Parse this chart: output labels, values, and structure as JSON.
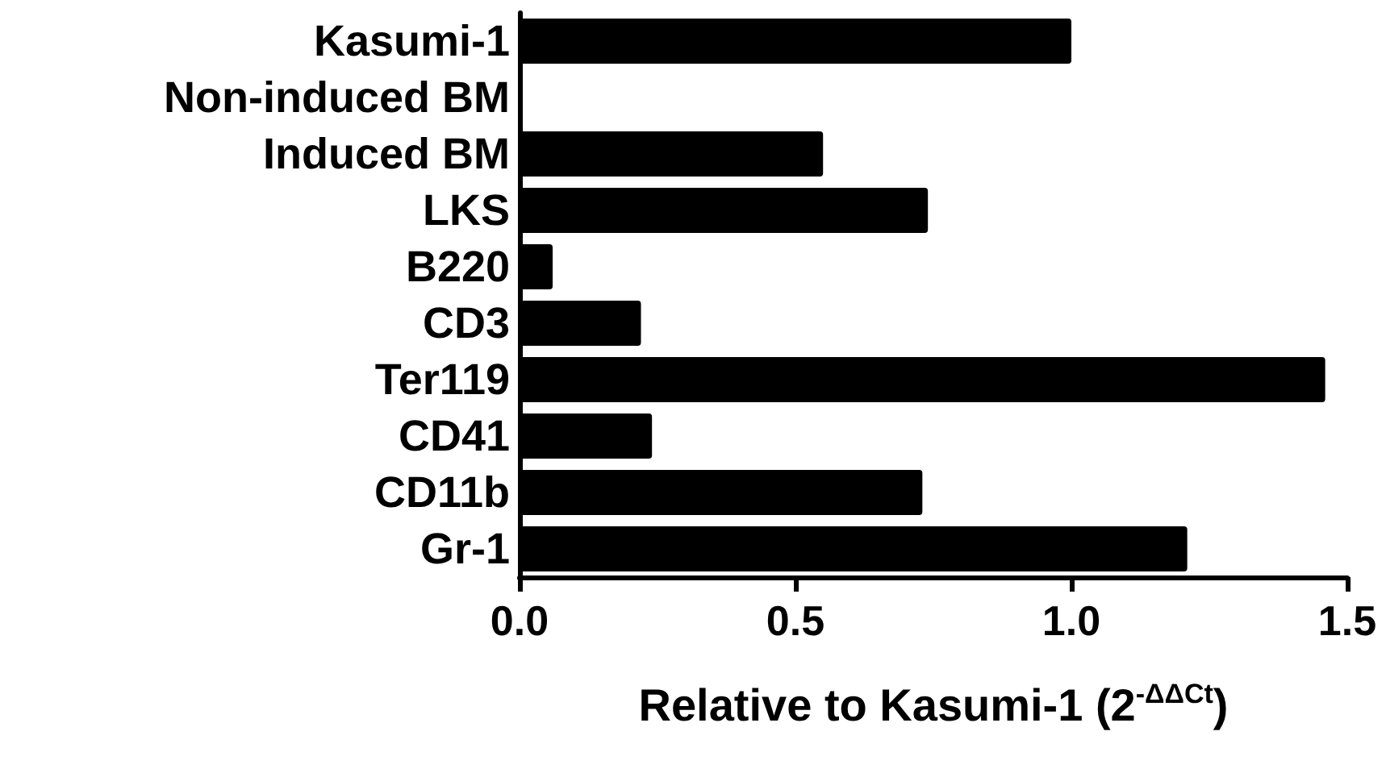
{
  "chart_data": {
    "type": "bar",
    "orientation": "horizontal",
    "xlabel": "Relative to Kasumi-1 (2$^{-ΔΔCt}$)",
    "categories": [
      "Kasumi-1",
      "Non-induced BM",
      "Induced BM",
      "LKS",
      "B220",
      "CD3",
      "Ter119",
      "CD41",
      "CD11b",
      "Gr-1"
    ],
    "values": [
      1.0,
      0,
      0.55,
      0.74,
      0.06,
      0.22,
      1.46,
      0.24,
      0.73,
      1.21
    ],
    "color": "#000000",
    "xlim": [
      0,
      1.5
    ],
    "xticks": [
      {
        "value": 0,
        "label": "0.0"
      },
      {
        "value": 0.5,
        "label": "0.5"
      },
      {
        "value": 1,
        "label": "1.0"
      },
      {
        "value": 1.5,
        "label": "1.5"
      }
    ],
    "data_labels": false
  }
}
